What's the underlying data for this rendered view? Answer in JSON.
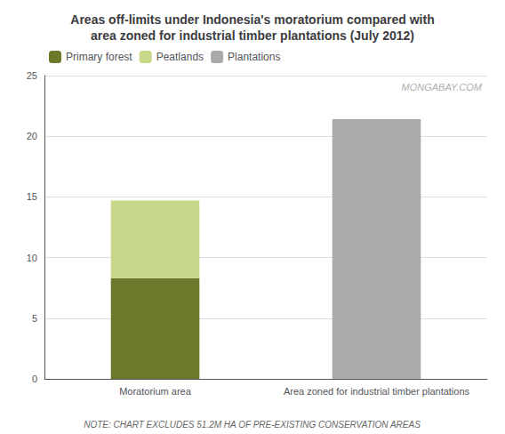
{
  "chart_data": {
    "type": "bar",
    "title": "Areas off-limits under Indonesia's moratorium compared with\narea zoned for industrial timber plantations (July 2012)",
    "categories": [
      "Moratorium area",
      "Area zoned for industrial timber plantations"
    ],
    "series": [
      {
        "name": "Primary forest",
        "color": "#6b7a2a",
        "values": [
          8.3,
          null
        ]
      },
      {
        "name": "Peatlands",
        "color": "#c8d88a",
        "values": [
          6.4,
          null
        ]
      },
      {
        "name": "Plantations",
        "color": "#aaaaaa",
        "values": [
          null,
          21.4
        ]
      }
    ],
    "stacked": true,
    "ylim": [
      0,
      25
    ],
    "yticks": [
      0,
      5,
      10,
      15,
      20,
      25
    ],
    "grid": true,
    "legend": "upper left",
    "annotations": [
      "MONGABAY.COM",
      "NOTE: CHART EXCLUDES 51.2M HA OF PRE-EXISTING CONSERVATION AREAS"
    ]
  }
}
